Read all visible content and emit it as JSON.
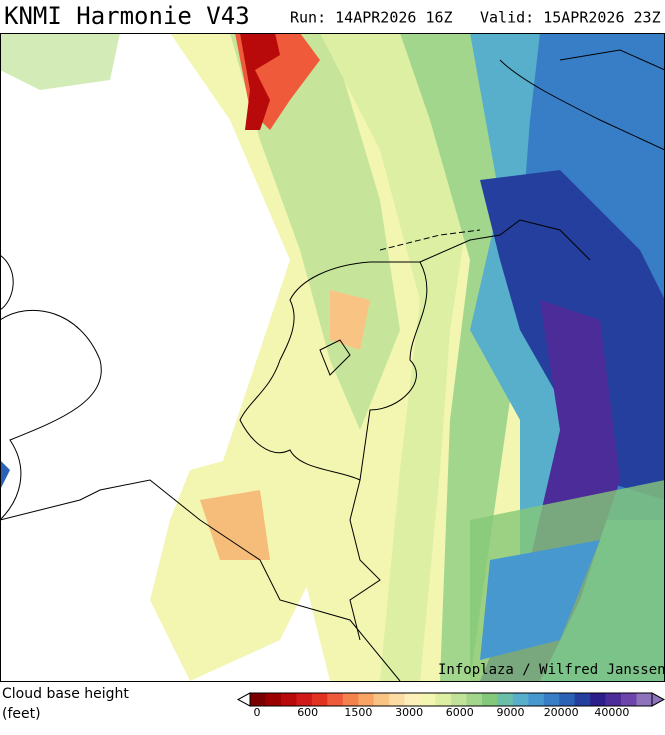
{
  "header": {
    "title": "KNMI Harmonie V43",
    "run": "Run: 14APR2026 16Z",
    "valid": "Valid: 15APR2026 23Z"
  },
  "map": {
    "credit": "Infoplaza / Wilfred Janssen"
  },
  "legend": {
    "title": "Cloud base height",
    "unit": "(feet)",
    "ticks": [
      "0",
      "600",
      "1500",
      "3000",
      "6000",
      "9000",
      "20000",
      "40000"
    ],
    "colors": [
      "#7a0000",
      "#9a0000",
      "#b80a0a",
      "#d01a1a",
      "#e23222",
      "#ee5a3a",
      "#f4824e",
      "#f7a464",
      "#f9c384",
      "#fbdca2",
      "#fdf0b8",
      "#f2f6b0",
      "#dcefa2",
      "#c0e399",
      "#a2d68c",
      "#84c87c",
      "#6abfa8",
      "#58afcc",
      "#4898d0",
      "#387ec6",
      "#2c62b6",
      "#243f9e",
      "#2c1f8c",
      "#4c2c98",
      "#6c44aa",
      "#8e72bc"
    ]
  }
}
